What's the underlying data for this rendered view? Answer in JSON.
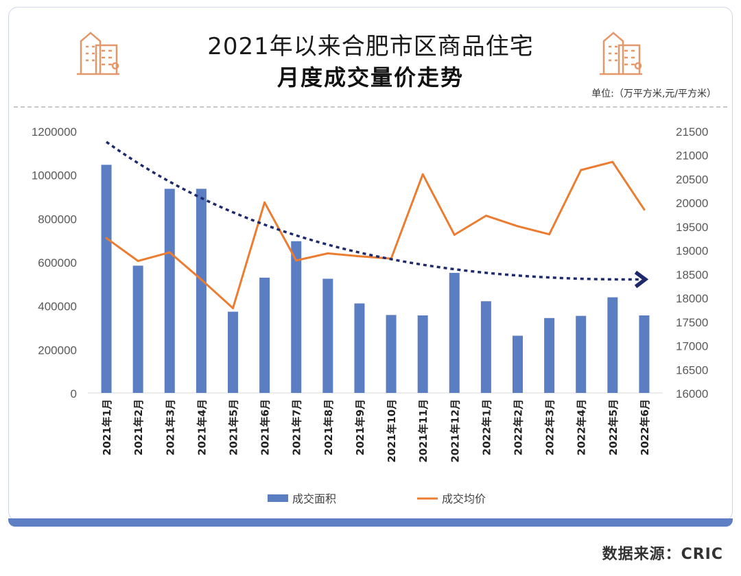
{
  "header": {
    "title_line1": "2021年以来合肥市区商品住宅",
    "title_line2": "月度成交量价走势",
    "unit_label": "单位:（万平方米,元/平方米）"
  },
  "source_label": "数据来源：CRIC",
  "colors": {
    "bar": "#5b7ec2",
    "line": "#ec7c30",
    "trend": "#1f2a6b",
    "icon": "#e4976a",
    "band": "#5f7fc4"
  },
  "chart_data": {
    "type": "bar+line",
    "categories": [
      "2021年1月",
      "2021年2月",
      "2021年3月",
      "2021年4月",
      "2021年5月",
      "2021年6月",
      "2021年7月",
      "2021年8月",
      "2021年9月",
      "2021年10月",
      "2021年11月",
      "2021年12月",
      "2022年1月",
      "2022年2月",
      "2022年3月",
      "2022年4月",
      "2022年5月",
      "2022年6月"
    ],
    "series": [
      {
        "name": "成交面积",
        "type": "bar",
        "axis": "left",
        "values": [
          1045000,
          583000,
          935000,
          935000,
          372000,
          528000,
          695000,
          523000,
          410000,
          357000,
          355000,
          550000,
          420000,
          262000,
          343000,
          353000,
          438000,
          355000
        ]
      },
      {
        "name": "成交均价",
        "type": "line",
        "axis": "right",
        "values": [
          19250,
          18770,
          18950,
          18380,
          17780,
          20000,
          18780,
          18930,
          18870,
          18820,
          20590,
          19320,
          19720,
          19500,
          19330,
          20680,
          20850,
          19850
        ]
      }
    ],
    "left_axis": {
      "min": 0,
      "max": 1200000,
      "ticks": [
        "0",
        "200000",
        "400000",
        "600000",
        "800000",
        "1000000",
        "1200000"
      ]
    },
    "right_axis": {
      "min": 16000,
      "max": 21500,
      "ticks": [
        "16000",
        "16500",
        "17000",
        "17500",
        "18000",
        "18500",
        "19000",
        "19500",
        "20000",
        "20500",
        "21000",
        "21500"
      ]
    },
    "legend": [
      {
        "name": "成交面积",
        "symbol": "bar"
      },
      {
        "name": "成交均价",
        "symbol": "line"
      }
    ],
    "trend_arrow": {
      "start_value": 1150000,
      "end_value": 520000,
      "style": "dashed arrow"
    }
  }
}
